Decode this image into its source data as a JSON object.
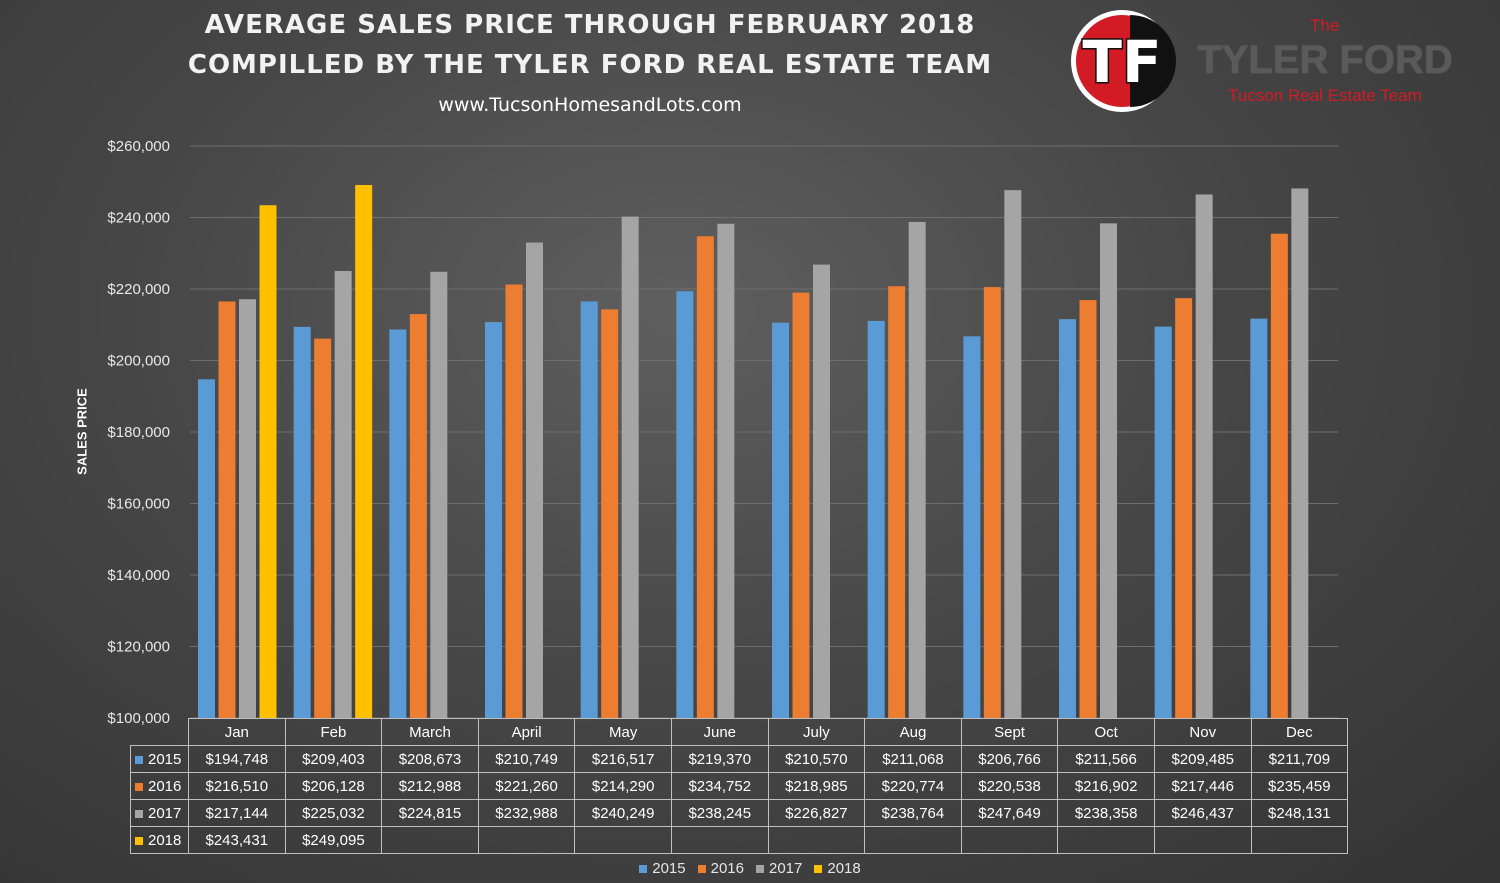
{
  "header": {
    "title_line1": "AVERAGE SALES PRICE THROUGH FEBRUARY 2018",
    "title_line2": "COMPILLED BY THE TYLER FORD REAL ESTATE TEAM",
    "url": "www.TucsonHomesandLots.com"
  },
  "brand": {
    "monogram": "TF",
    "the": "The",
    "name": "TYLER FORD",
    "subtitle": "Tucson Real Estate Team"
  },
  "chart_data": {
    "type": "bar",
    "ylabel": "SALES PRICE",
    "ylim": [
      100000,
      260000
    ],
    "ytick_step": 20000,
    "ytick_labels": [
      "$100,000",
      "$120,000",
      "$140,000",
      "$160,000",
      "$180,000",
      "$200,000",
      "$220,000",
      "$240,000",
      "$260,000"
    ],
    "grid": true,
    "legend_position": "bottom",
    "categories": [
      "Jan",
      "Feb",
      "March",
      "April",
      "May",
      "June",
      "July",
      "Aug",
      "Sept",
      "Oct",
      "Nov",
      "Dec"
    ],
    "series": [
      {
        "name": "2015",
        "color": "#5b9bd5",
        "values": [
          194748,
          209403,
          208673,
          210749,
          216517,
          219370,
          210570,
          211068,
          206766,
          211566,
          209485,
          211709
        ],
        "labels": [
          "$194,748",
          "$209,403",
          "$208,673",
          "$210,749",
          "$216,517",
          "$219,370",
          "$210,570",
          "$211,068",
          "$206,766",
          "$211,566",
          "$209,485",
          "$211,709"
        ]
      },
      {
        "name": "2016",
        "color": "#ed7d31",
        "values": [
          216510,
          206128,
          212988,
          221260,
          214290,
          234752,
          218985,
          220774,
          220538,
          216902,
          217446,
          235459
        ],
        "labels": [
          "$216,510",
          "$206,128",
          "$212,988",
          "$221,260",
          "$214,290",
          "$234,752",
          "$218,985",
          "$220,774",
          "$220,538",
          "$216,902",
          "$217,446",
          "$235,459"
        ]
      },
      {
        "name": "2017",
        "color": "#a5a5a5",
        "values": [
          217144,
          225032,
          224815,
          232988,
          240249,
          238245,
          226827,
          238764,
          247649,
          238358,
          246437,
          248131
        ],
        "labels": [
          "$217,144",
          "$225,032",
          "$224,815",
          "$232,988",
          "$240,249",
          "$238,245",
          "$226,827",
          "$238,764",
          "$247,649",
          "$238,358",
          "$246,437",
          "$248,131"
        ]
      },
      {
        "name": "2018",
        "color": "#ffc000",
        "values": [
          243431,
          249095,
          null,
          null,
          null,
          null,
          null,
          null,
          null,
          null,
          null,
          null
        ],
        "labels": [
          "$243,431",
          "$249,095",
          "",
          "",
          "",
          "",
          "",
          "",
          "",
          "",
          "",
          ""
        ]
      }
    ]
  }
}
